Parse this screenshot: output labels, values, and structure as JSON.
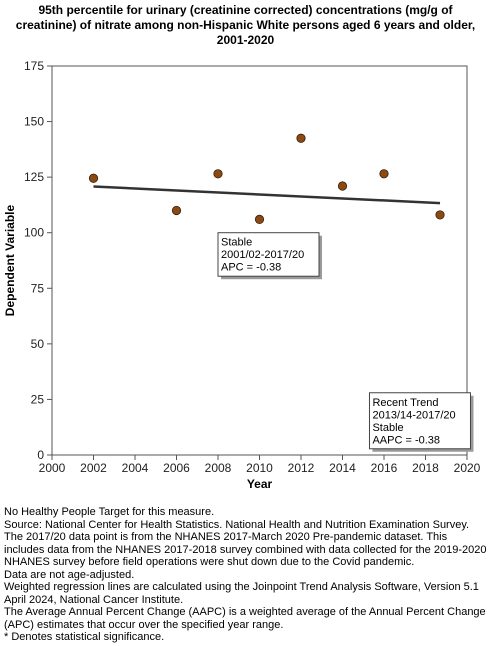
{
  "title_lines": [
    "95th percentile for urinary (creatinine corrected) concentrations (mg/g of",
    "creatinine) of nitrate among  non-Hispanic White persons aged 6 years and older,",
    "2001-2020"
  ],
  "chart_data": {
    "type": "scatter",
    "xlabel": "Year",
    "ylabel": "Dependent Variable",
    "xlim": [
      2000,
      2020
    ],
    "ylim": [
      0,
      175
    ],
    "xticks": [
      2000,
      2002,
      2004,
      2006,
      2008,
      2010,
      2012,
      2014,
      2016,
      2018,
      2020
    ],
    "yticks": [
      0,
      25,
      50,
      75,
      100,
      125,
      150,
      175
    ],
    "grid": false,
    "points": [
      {
        "x": 2002,
        "y": 124.5
      },
      {
        "x": 2006,
        "y": 110
      },
      {
        "x": 2008,
        "y": 126.5
      },
      {
        "x": 2010,
        "y": 106
      },
      {
        "x": 2012,
        "y": 142.5
      },
      {
        "x": 2014,
        "y": 121
      },
      {
        "x": 2016,
        "y": 126.5
      },
      {
        "x": 2018.7,
        "y": 108
      }
    ],
    "point_color": "#8b4a14",
    "trend_line": {
      "x": [
        2002,
        2018.7
      ],
      "y": [
        120.8,
        113.3
      ],
      "color": "#333333"
    },
    "annotations": [
      {
        "lines": [
          "Stable",
          "2001/02-2017/20",
          "APC = -0.38"
        ],
        "anchor": {
          "x": 2008,
          "y": 100
        }
      },
      {
        "lines": [
          "Recent Trend",
          "2013/14-2017/20",
          "Stable",
          "AAPC = -0.38"
        ],
        "anchor": {
          "x": 2015.3,
          "y": 28
        }
      }
    ]
  },
  "footnotes": [
    "No Healthy People Target for this measure.",
    "Source: National Center for Health Statistics. National Health and Nutrition Examination Survey. The 2017/20 data point is from the NHANES 2017-March 2020 Pre-pandemic dataset. This includes data from the NHANES 2017-2018 survey combined with data collected for the 2019-2020 NHANES survey before field operations were shut down due to the Covid pandemic.",
    "Data are not age-adjusted.",
    "Weighted regression lines are calculated using the Joinpoint Trend Analysis Software, Version 5.1 April 2024, National Cancer Institute.",
    "The Average Annual Percent Change (AAPC) is a weighted average of the Annual Percent Change (APC) estimates that occur over the specified year range.",
    "* Denotes statistical significance."
  ]
}
